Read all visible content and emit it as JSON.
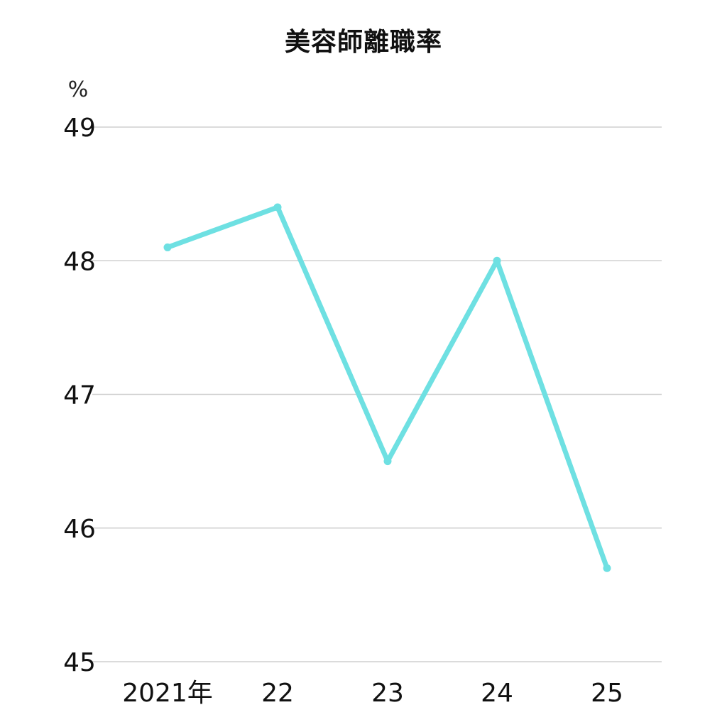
{
  "chart_data": {
    "type": "line",
    "title": "美容師離職率",
    "y_unit": "%",
    "categories": [
      "2021年",
      "22",
      "23",
      "24",
      "25"
    ],
    "series": [
      {
        "values": [
          48.1,
          48.4,
          46.5,
          48.0,
          45.7
        ],
        "color": "#6ee0e2"
      }
    ],
    "ylim": [
      45,
      49
    ],
    "yticks": [
      45,
      46,
      47,
      48,
      49
    ],
    "grid": true,
    "legend": "none"
  }
}
